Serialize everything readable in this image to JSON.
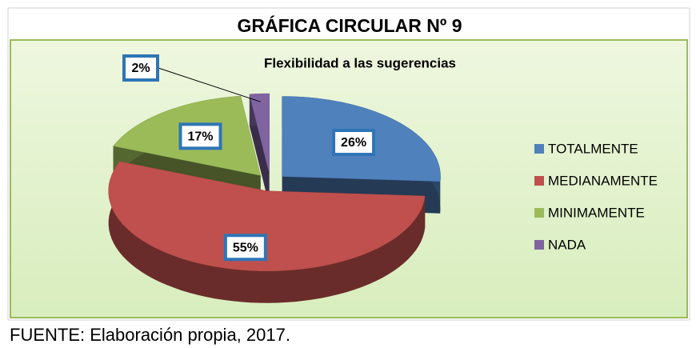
{
  "chart_data": {
    "type": "pie",
    "title": "GRÁFICA CIRCULAR Nº 9",
    "subtitle": "Flexibilidad  a las sugerencias",
    "categories": [
      "TOTALMENTE",
      "MEDIANAMENTE",
      "MINIMAMENTE",
      "NADA"
    ],
    "series": [
      {
        "name": "Flexibilidad  a las sugerencias",
        "values": [
          26,
          55,
          17,
          2
        ],
        "value_labels": [
          "26%",
          "55%",
          "17%",
          "2%"
        ],
        "colors": [
          "#4f81bd",
          "#c0504d",
          "#9bbb59",
          "#8064a2"
        ]
      }
    ],
    "legend": "right",
    "source": "FUENTE: Elaboración propia, 2017."
  }
}
